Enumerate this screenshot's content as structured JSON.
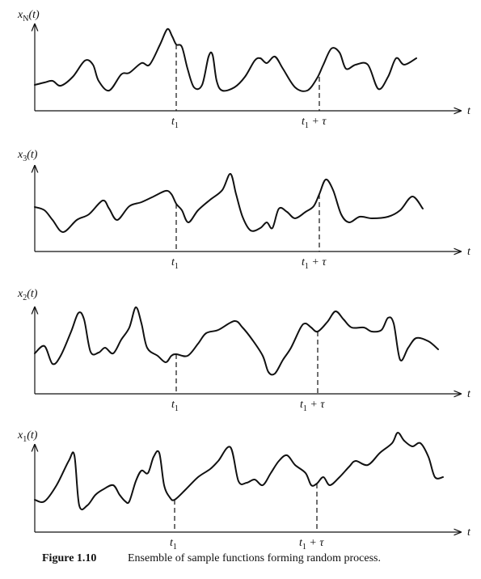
{
  "panels": [
    {
      "label": {
        "base": "x",
        "sub": "N",
        "arg": "(t)"
      },
      "axis": "t",
      "t1": {
        "base": "t",
        "sub": "1"
      },
      "t2": {
        "base": "t",
        "sub": "1",
        "rest": " + τ"
      }
    },
    {
      "label": {
        "base": "x",
        "sub": "3",
        "arg": "(t)"
      },
      "axis": "t",
      "t1": {
        "base": "t",
        "sub": "1"
      },
      "t2": {
        "base": "t",
        "sub": "1",
        "rest": " + τ"
      }
    },
    {
      "label": {
        "base": "x",
        "sub": "2",
        "arg": "(t)"
      },
      "axis": "t",
      "t1": {
        "base": "t",
        "sub": "1"
      },
      "t2": {
        "base": "t",
        "sub": "1",
        "rest": " + τ"
      }
    },
    {
      "label": {
        "base": "x",
        "sub": "1",
        "arg": "(t)"
      },
      "axis": "t",
      "t1": {
        "base": "t",
        "sub": "1"
      },
      "t2": {
        "base": "t",
        "sub": "1",
        "rest": " + τ"
      }
    }
  ],
  "caption": {
    "number": "Figure 1.10",
    "text": "Ensemble of sample functions forming random process."
  }
}
